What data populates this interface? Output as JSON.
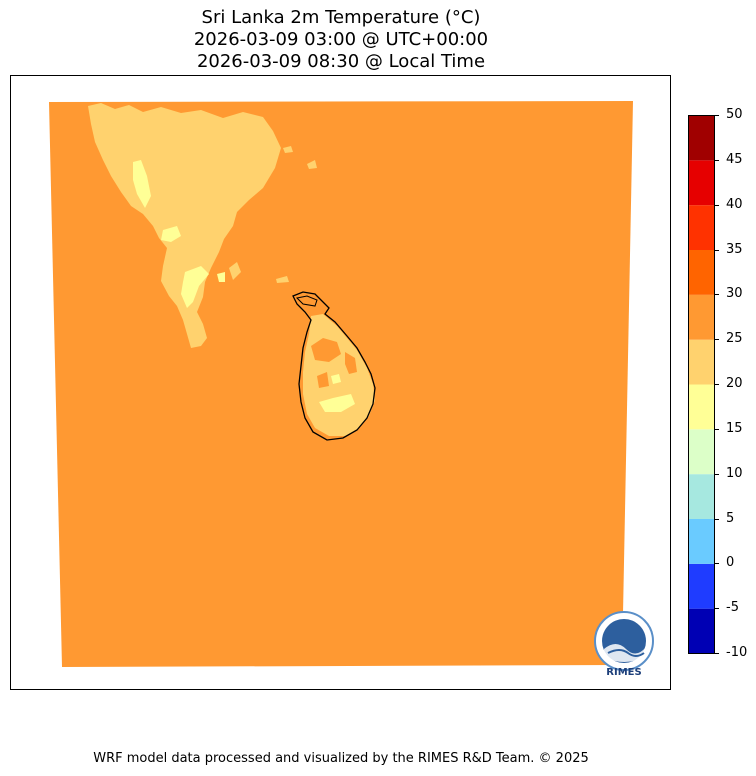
{
  "title": {
    "line1": "Sri Lanka 2m Temperature (°C)",
    "line2": "2026-03-09 03:00 @ UTC+00:00",
    "line3": "2026-03-09 08:30 @ Local Time"
  },
  "colorbar": {
    "ticks": [
      "50",
      "45",
      "40",
      "35",
      "30",
      "25",
      "20",
      "15",
      "10",
      "5",
      "0",
      "-5",
      "-10"
    ],
    "levels": [
      -10,
      -5,
      0,
      5,
      10,
      15,
      20,
      25,
      30,
      35,
      40,
      45,
      50
    ],
    "colors": [
      "#0000b4",
      "#1f3cff",
      "#6acbff",
      "#a6e8e0",
      "#dcffc8",
      "#ffff96",
      "#ffd26e",
      "#ff9932",
      "#ff6400",
      "#ff3200",
      "#e60000",
      "#a00000"
    ]
  },
  "map": {
    "background_color": "#ff9932",
    "land_warm_color": "#ffd26e",
    "land_cool_color": "#ffff96"
  },
  "logo": {
    "text": "RIMES"
  },
  "footer": "WRF model data processed and visualized by the RIMES R&D Team. © 2025"
}
